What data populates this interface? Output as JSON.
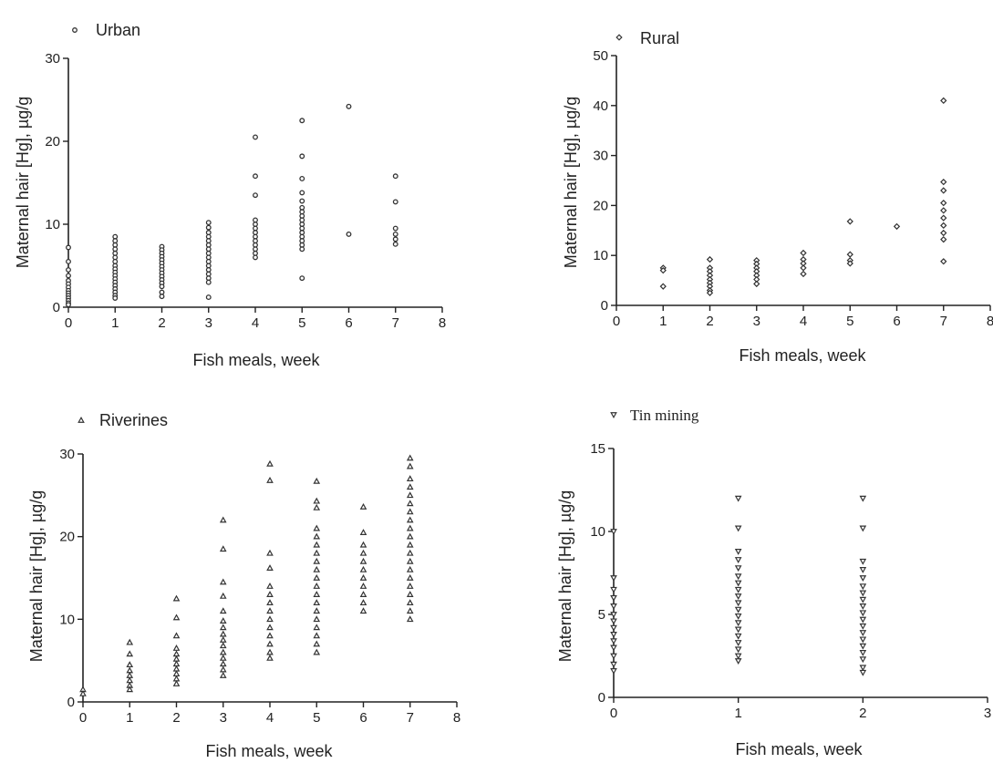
{
  "chart_data": [
    {
      "type": "scatter",
      "panel": "urban",
      "legend": "Urban",
      "marker": "circle",
      "xlabel": "Fish meals, week",
      "ylabel": "Maternal hair [Hg], µg/g",
      "xlim": [
        0,
        8
      ],
      "ylim": [
        0,
        30
      ],
      "xticks": [
        0,
        1,
        2,
        3,
        4,
        5,
        6,
        7,
        8
      ],
      "yticks": [
        0,
        10,
        20,
        30
      ],
      "grid": false,
      "legend_position": "top-left",
      "points": {
        "0": [
          7.2,
          5.5,
          4.5,
          3.8,
          3.2,
          2.8,
          2.4,
          2.0,
          1.7,
          1.4,
          1.1,
          0.8,
          0.5,
          0.3
        ],
        "1": [
          8.5,
          8.0,
          7.5,
          7.0,
          6.5,
          6.0,
          5.5,
          5.0,
          4.6,
          4.2,
          3.8,
          3.4,
          3.0,
          2.6,
          2.2,
          1.8,
          1.4,
          1.1
        ],
        "2": [
          7.3,
          6.9,
          6.5,
          6.1,
          5.7,
          5.3,
          4.9,
          4.5,
          4.1,
          3.7,
          3.3,
          2.9,
          2.5,
          1.8,
          1.3
        ],
        "3": [
          10.2,
          9.6,
          9.0,
          8.5,
          8.0,
          7.5,
          7.0,
          6.5,
          6.0,
          5.5,
          5.0,
          4.5,
          4.0,
          3.5,
          3.0,
          1.2
        ],
        "4": [
          20.5,
          15.8,
          13.5,
          10.5,
          10.0,
          9.5,
          9.0,
          8.5,
          8.0,
          7.5,
          7.0,
          6.5,
          6.0
        ],
        "5": [
          22.5,
          18.2,
          15.5,
          13.8,
          12.8,
          12.0,
          11.5,
          11.0,
          10.5,
          10.0,
          9.5,
          9.0,
          8.5,
          8.0,
          7.5,
          7.0,
          3.5
        ],
        "6": [
          24.2,
          8.8
        ],
        "7": [
          15.8,
          12.7,
          9.5,
          8.8,
          8.2,
          7.6
        ]
      }
    },
    {
      "type": "scatter",
      "panel": "rural",
      "legend": "Rural",
      "marker": "diamond",
      "xlabel": "Fish meals, week",
      "ylabel": "Maternal hair [Hg], µg/g",
      "xlim": [
        0,
        8
      ],
      "ylim": [
        0,
        50
      ],
      "xticks": [
        0,
        1,
        2,
        3,
        4,
        5,
        6,
        7,
        8
      ],
      "yticks": [
        0,
        10,
        20,
        30,
        40,
        50
      ],
      "grid": false,
      "legend_position": "top-left",
      "points": {
        "1": [
          7.5,
          7.0,
          3.8
        ],
        "2": [
          9.2,
          7.5,
          6.8,
          6.0,
          5.2,
          4.5,
          3.8,
          3.0,
          2.5
        ],
        "3": [
          9.0,
          8.3,
          7.5,
          6.8,
          6.0,
          5.2,
          4.3
        ],
        "4": [
          10.5,
          9.2,
          8.4,
          7.5,
          6.3
        ],
        "5": [
          16.8,
          10.2,
          9.0,
          8.4
        ],
        "6": [
          15.8
        ],
        "7": [
          41.0,
          24.7,
          23.0,
          20.5,
          19.0,
          17.5,
          16.0,
          14.5,
          13.2,
          8.8
        ]
      }
    },
    {
      "type": "scatter",
      "panel": "riverines",
      "legend": "Riverines",
      "marker": "triangle-up",
      "xlabel": "Fish meals, week",
      "ylabel": "Maternal hair [Hg], µg/g",
      "xlim": [
        0,
        8
      ],
      "ylim": [
        0,
        30
      ],
      "xticks": [
        0,
        1,
        2,
        3,
        4,
        5,
        6,
        7,
        8
      ],
      "yticks": [
        0,
        10,
        20,
        30
      ],
      "grid": false,
      "legend_position": "top-left",
      "points": {
        "0": [
          1.5,
          1.0
        ],
        "1": [
          7.2,
          5.8,
          4.5,
          3.8,
          3.2,
          2.6,
          2.0,
          1.5
        ],
        "2": [
          12.5,
          10.2,
          8.0,
          6.5,
          5.8,
          5.2,
          4.6,
          4.0,
          3.4,
          2.8,
          2.2
        ],
        "3": [
          22.0,
          18.5,
          14.5,
          12.8,
          11.0,
          9.8,
          9.0,
          8.2,
          7.5,
          6.8,
          6.0,
          5.3,
          4.6,
          3.9,
          3.2
        ],
        "4": [
          28.8,
          26.8,
          18.0,
          16.2,
          14.0,
          13.0,
          12.0,
          11.0,
          10.0,
          9.0,
          8.0,
          7.0,
          6.0,
          5.3
        ],
        "5": [
          26.7,
          24.3,
          23.5,
          21.0,
          20.0,
          19.0,
          18.0,
          17.0,
          16.0,
          15.0,
          14.0,
          13.0,
          12.0,
          11.0,
          10.0,
          9.0,
          8.0,
          7.0,
          6.0
        ],
        "6": [
          23.6,
          20.5,
          19.0,
          18.0,
          17.0,
          16.0,
          15.0,
          14.0,
          13.0,
          12.0,
          11.0
        ],
        "7": [
          29.5,
          28.5,
          27.0,
          26.0,
          25.0,
          24.0,
          23.0,
          22.0,
          21.0,
          20.0,
          19.0,
          18.0,
          17.0,
          16.0,
          15.0,
          14.0,
          13.0,
          12.0,
          11.0,
          10.0
        ]
      }
    },
    {
      "type": "scatter",
      "panel": "tin-mining",
      "legend": "Tin mining",
      "marker": "triangle-down",
      "xlabel": "Fish meals, week",
      "ylabel": "Maternal hair [Hg], µg/g",
      "xlim": [
        0,
        3
      ],
      "ylim": [
        0,
        15
      ],
      "xticks": [
        0,
        1,
        2,
        3
      ],
      "yticks": [
        0,
        5,
        10,
        15
      ],
      "grid": false,
      "legend_position": "top-left",
      "points": {
        "0": [
          10.0,
          7.2,
          6.5,
          6.0,
          5.5,
          5.0,
          4.6,
          4.2,
          3.8,
          3.4,
          3.0,
          2.5,
          2.0,
          1.6
        ],
        "1": [
          12.0,
          10.2,
          8.8,
          8.3,
          7.8,
          7.3,
          6.9,
          6.5,
          6.1,
          5.7,
          5.3,
          4.9,
          4.5,
          4.1,
          3.7,
          3.3,
          2.9,
          2.5,
          2.2
        ],
        "2": [
          12.0,
          10.2,
          8.2,
          7.7,
          7.2,
          6.7,
          6.3,
          5.9,
          5.5,
          5.1,
          4.7,
          4.3,
          3.9,
          3.5,
          3.1,
          2.7,
          2.3,
          1.8,
          1.5
        ]
      }
    }
  ]
}
